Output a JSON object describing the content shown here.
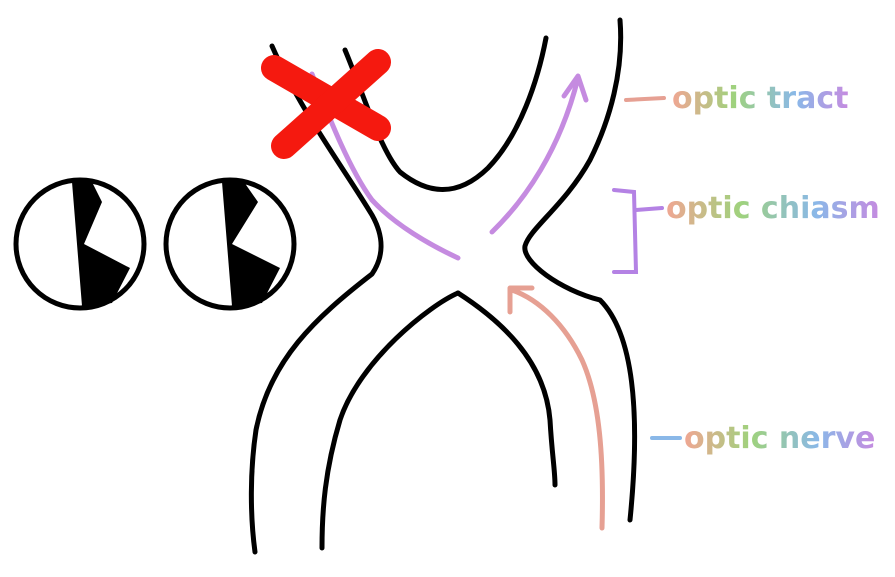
{
  "labels": {
    "optic_tract": "optic tract",
    "optic_chiasm": "optic chiasm",
    "optic_nerve": "optic nerve"
  },
  "icons": [
    "visual-field-circle-icon",
    "visual-field-circle-icon",
    "red-x-icon"
  ],
  "colors": {
    "outline": "#000000",
    "tract_arrow": "#c58be0",
    "nerve_arrow": "#e6a093",
    "red_x": "#f5190f",
    "bracket": "#b482e4",
    "label_gradient": [
      "#f0a693",
      "#9fd27d",
      "#8ab8e8",
      "#c58be0"
    ]
  }
}
